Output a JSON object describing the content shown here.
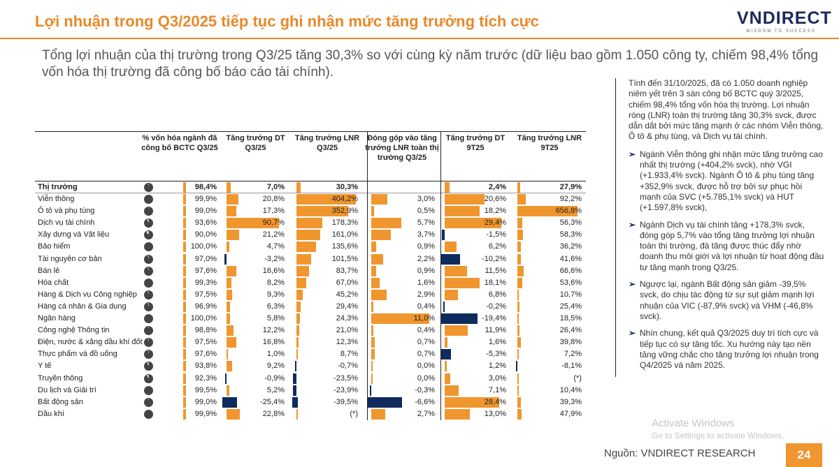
{
  "header": {
    "title": "Lợi nhuận trong Q3/2025 tiếp tục ghi nhận mức tăng trưởng tích cực",
    "logo_text": "VNDIRECT",
    "logo_tagline": "WISDOM TO SUCCESS"
  },
  "subtitle": "Tổng lợi nhuận của thị trường trong Q3/25 tăng 30,3% so với cùng kỳ năm trước (dữ liệu bao gồm 1.050 công ty, chiếm 98,4% tổng vốn hóa thị trường đã công bố báo cáo tài chính).",
  "table": {
    "headers": {
      "h1": "% vốn hóa ngành đã công bố BCTC Q3/25",
      "h2": "Tăng trưởng DT Q3/25",
      "h3": "Tăng trưởng LNR Q3/25",
      "h4": "Đóng góp vào tăng trưởng LNR toàn thị trường Q3/25",
      "h5": "Tăng trưởng DT 9T25",
      "h6": "Tăng trưởng LNR 9T25"
    },
    "rows": [
      {
        "name": "Thị trường",
        "cap": "98,4%",
        "capv": 98.4,
        "dt": "7,0%",
        "dtv": 7.0,
        "lnr": "30,3%",
        "lnrv": 30.3,
        "contrib": "",
        "contribv": 0,
        "dt9": "2,4%",
        "dt9v": 2.4,
        "lnr9": "27,9%",
        "lnr9v": 27.9
      },
      {
        "name": "Viễn thông",
        "cap": "99,9%",
        "capv": 99.9,
        "dt": "20,8%",
        "dtv": 20.8,
        "lnr": "404,2%",
        "lnrv": 404.2,
        "contrib": "3,0%",
        "contribv": 3.0,
        "dt9": "20,6%",
        "dt9v": 20.6,
        "lnr9": "92,2%",
        "lnr9v": 92.2
      },
      {
        "name": "Ô tô và phụ tùng",
        "cap": "99,0%",
        "capv": 99.0,
        "dt": "17,3%",
        "dtv": 17.3,
        "lnr": "352,9%",
        "lnrv": 352.9,
        "contrib": "0,5%",
        "contribv": 0.5,
        "dt9": "18,2%",
        "dt9v": 18.2,
        "lnr9": "656,8%",
        "lnr9v": 656.8
      },
      {
        "name": "Dịch vụ tài chính",
        "cap": "93,6%",
        "capv": 93.6,
        "dt": "90,7%",
        "dtv": 90.7,
        "lnr": "178,3%",
        "lnrv": 178.3,
        "contrib": "5,7%",
        "contribv": 5.7,
        "dt9": "29,4%",
        "dt9v": 29.4,
        "lnr9": "56,3%",
        "lnr9v": 56.3
      },
      {
        "name": "Xây dựng và Vật liệu",
        "cap": "90,0%",
        "capv": 90.0,
        "dt": "21,2%",
        "dtv": 21.2,
        "lnr": "161,0%",
        "lnrv": 161.0,
        "contrib": "3,7%",
        "contribv": 3.7,
        "dt9": "-1,5%",
        "dt9v": -1.5,
        "lnr9": "58,3%",
        "lnr9v": 58.3
      },
      {
        "name": "Bảo hiểm",
        "cap": "100,0%",
        "capv": 100.0,
        "dt": "4,7%",
        "dtv": 4.7,
        "lnr": "135,6%",
        "lnrv": 135.6,
        "contrib": "0,9%",
        "contribv": 0.9,
        "dt9": "6,2%",
        "dt9v": 6.2,
        "lnr9": "36,2%",
        "lnr9v": 36.2
      },
      {
        "name": "Tài nguyên cơ bản",
        "cap": "97,0%",
        "capv": 97.0,
        "dt": "-3,2%",
        "dtv": -3.2,
        "lnr": "101,5%",
        "lnrv": 101.5,
        "contrib": "2,2%",
        "contribv": 2.2,
        "dt9": "-10,2%",
        "dt9v": -10.2,
        "lnr9": "41,6%",
        "lnr9v": 41.6
      },
      {
        "name": "Bán lẻ",
        "cap": "97,6%",
        "capv": 97.6,
        "dt": "16,6%",
        "dtv": 16.6,
        "lnr": "83,7%",
        "lnrv": 83.7,
        "contrib": "0,9%",
        "contribv": 0.9,
        "dt9": "11,5%",
        "dt9v": 11.5,
        "lnr9": "66,6%",
        "lnr9v": 66.6
      },
      {
        "name": "Hóa chất",
        "cap": "99,3%",
        "capv": 99.3,
        "dt": "8,2%",
        "dtv": 8.2,
        "lnr": "67,0%",
        "lnrv": 67.0,
        "contrib": "1,6%",
        "contribv": 1.6,
        "dt9": "18,1%",
        "dt9v": 18.1,
        "lnr9": "53,6%",
        "lnr9v": 53.6
      },
      {
        "name": "Hàng & Dịch vụ Công nghiệp",
        "cap": "97,5%",
        "capv": 97.5,
        "dt": "9,3%",
        "dtv": 9.3,
        "lnr": "45,2%",
        "lnrv": 45.2,
        "contrib": "2,9%",
        "contribv": 2.9,
        "dt9": "6,8%",
        "dt9v": 6.8,
        "lnr9": "10,7%",
        "lnr9v": 10.7
      },
      {
        "name": "Hàng cá nhân & Gia dụng",
        "cap": "96,9%",
        "capv": 96.9,
        "dt": "6,3%",
        "dtv": 6.3,
        "lnr": "29,4%",
        "lnrv": 29.4,
        "contrib": "0,4%",
        "contribv": 0.4,
        "dt9": "-0,2%",
        "dt9v": -0.2,
        "lnr9": "25,4%",
        "lnr9v": 25.4
      },
      {
        "name": "Ngân hàng",
        "cap": "100,0%",
        "capv": 100.0,
        "dt": "5,8%",
        "dtv": 5.8,
        "lnr": "24,3%",
        "lnrv": 24.3,
        "contrib": "11,0%",
        "contribv": 11.0,
        "dt9": "-19,4%",
        "dt9v": -19.4,
        "lnr9": "18,5%",
        "lnr9v": 18.5
      },
      {
        "name": "Công nghệ Thông tin",
        "cap": "98,8%",
        "capv": 98.8,
        "dt": "12,2%",
        "dtv": 12.2,
        "lnr": "21,0%",
        "lnrv": 21.0,
        "contrib": "0,4%",
        "contribv": 0.4,
        "dt9": "11,9%",
        "dt9v": 11.9,
        "lnr9": "26,4%",
        "lnr9v": 26.4
      },
      {
        "name": "Điện, nước & xăng dầu khí đốt",
        "cap": "97,5%",
        "capv": 97.5,
        "dt": "16,8%",
        "dtv": 16.8,
        "lnr": "12,3%",
        "lnrv": 12.3,
        "contrib": "0,7%",
        "contribv": 0.7,
        "dt9": "1,6%",
        "dt9v": 1.6,
        "lnr9": "39,8%",
        "lnr9v": 39.8
      },
      {
        "name": "Thực phẩm và đồ uống",
        "cap": "97,6%",
        "capv": 97.6,
        "dt": "1,0%",
        "dtv": 1.0,
        "lnr": "8,7%",
        "lnrv": 8.7,
        "contrib": "0,7%",
        "contribv": 0.7,
        "dt9": "-5,3%",
        "dt9v": -5.3,
        "lnr9": "7,2%",
        "lnr9v": 7.2
      },
      {
        "name": "Y tế",
        "cap": "93,8%",
        "capv": 93.8,
        "dt": "9,2%",
        "dtv": 9.2,
        "lnr": "-0,7%",
        "lnrv": -0.7,
        "contrib": "0,0%",
        "contribv": 0.0,
        "dt9": "1,2%",
        "dt9v": 1.2,
        "lnr9": "-8,1%",
        "lnr9v": -8.1
      },
      {
        "name": "Truyền thông",
        "cap": "92,3%",
        "capv": 92.3,
        "dt": "-0,9%",
        "dtv": -0.9,
        "lnr": "-23,5%",
        "lnrv": -23.5,
        "contrib": "0,0%",
        "contribv": 0.0,
        "dt9": "3,0%",
        "dt9v": 3.0,
        "lnr9": "(*)",
        "lnr9v": 0
      },
      {
        "name": "Du lịch và Giải trí",
        "cap": "99,5%",
        "capv": 99.5,
        "dt": "5,2%",
        "dtv": 5.2,
        "lnr": "-23,9%",
        "lnrv": -23.9,
        "contrib": "-0,3%",
        "contribv": -0.3,
        "dt9": "7,1%",
        "dt9v": 7.1,
        "lnr9": "10,4%",
        "lnr9v": 10.4
      },
      {
        "name": "Bất động sản",
        "cap": "99,0%",
        "capv": 99.0,
        "dt": "-25,4%",
        "dtv": -25.4,
        "lnr": "-39,5%",
        "lnrv": -39.5,
        "contrib": "-6,6%",
        "contribv": -6.6,
        "dt9": "28,4%",
        "dt9v": 28.4,
        "lnr9": "39,3%",
        "lnr9v": 39.3
      },
      {
        "name": "Dầu khí",
        "cap": "99,9%",
        "capv": 99.9,
        "dt": "22,8%",
        "dtv": 22.8,
        "lnr": "(*)",
        "lnrv": 0,
        "contrib": "2,7%",
        "contribv": 2.7,
        "dt9": "13,0%",
        "dt9v": 13.0,
        "lnr9": "47,9%",
        "lnr9v": 47.9
      }
    ]
  },
  "sidebar": {
    "intro": "Tính đến 31/10/2025, đã có 1.050 doanh nghiệp niêm yết trên 3 sàn công bố BCTC quý 3/2025, chiếm 98,4% tổng vốn hóa thị trường. Lợi nhuận ròng (LNR) toàn thị trường tăng 30,3% svck, được dẫn dắt bởi mức tăng mạnh ở các nhóm Viễn thông, Ô tô & phụ tùng, và Dịch vụ tài chính.",
    "bullets": [
      "Ngành Viễn thông ghi nhận mức tăng trưởng cao nhất thị trường (+404,2% svck), nhờ VGI (+1.933,4% svck). Ngành Ô tô & phụ tùng tăng +352,9% svck, được hỗ trợ bởi sự phục hồi mạnh của SVC (+5.785,1% svck) và HUT (+1.597,8% svck),",
      "Ngành Dịch vụ tài chính tăng +178,3% svck, đóng góp 5,7% vào tổng tăng trưởng lợi nhuận toàn thị trường, đà tăng được thúc đẩy nhờ doanh thu môi giới và lợi nhuận từ hoạt động đầu tư tăng mạnh trong Q3/25.",
      "Ngược lại, ngành Bất động sản giảm -39,5% svck, do chịu tác động từ sự sụt giảm mạnh lợi nhuận của VIC (-87,9% svck) và VHM (-46,8% svck).",
      "Nhìn chung, kết quả Q3/2025 duy trì tích cực và tiếp tục có sự tăng tốc. Xu hướng này tạo nền tảng vững chắc cho tăng trưởng lợi nhuận trong Q4/2025 và năm 2025."
    ],
    "arrow_glyph": "➢"
  },
  "footer": {
    "source": "Nguồn: VNDIRECT RESEARCH",
    "page": "24",
    "watermark_title": "Activate Windows",
    "watermark_sub": "Go to Settings to activate Windows."
  },
  "colors": {
    "accent": "#e8892a",
    "bar_positive": "#f0962e",
    "bar_negative": "#0f2a5c",
    "brand": "#1a2a5a"
  }
}
